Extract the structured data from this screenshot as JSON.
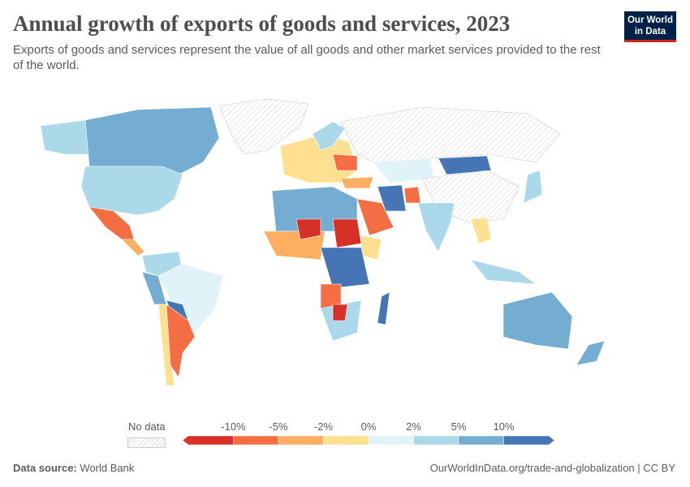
{
  "header": {
    "title": "Annual growth of exports of goods and services, 2023",
    "subtitle": "Exports of goods and services represent the value of all goods and other market services provided to the rest of the world.",
    "logo_line1": "Our World",
    "logo_line2": "in Data"
  },
  "legend": {
    "no_data_label": "No data",
    "ticks": [
      "-10%",
      "-5%",
      "-2%",
      "0%",
      "2%",
      "5%",
      "10%"
    ],
    "bins": [
      {
        "range": "< -10%",
        "color": "#d73027"
      },
      {
        "range": "-10% to -5%",
        "color": "#f46d43"
      },
      {
        "range": "-5% to -2%",
        "color": "#fdae61"
      },
      {
        "range": "-2% to 0%",
        "color": "#fee090"
      },
      {
        "range": "0% to 2%",
        "color": "#e0f3f8"
      },
      {
        "range": "2% to 5%",
        "color": "#abd9e9"
      },
      {
        "range": "5% to 10%",
        "color": "#74add1"
      },
      {
        "range": "> 10%",
        "color": "#4575b4"
      }
    ]
  },
  "footer": {
    "source_label": "Data source:",
    "source_value": "World Bank",
    "url": "OurWorldInData.org/trade-and-globalization | CC BY"
  }
}
